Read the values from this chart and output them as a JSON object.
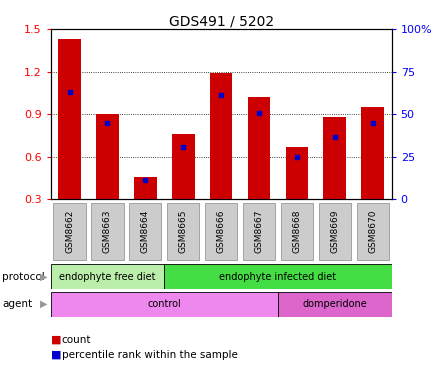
{
  "title": "GDS491 / 5202",
  "samples": [
    "GSM8662",
    "GSM8663",
    "GSM8664",
    "GSM8665",
    "GSM8666",
    "GSM8667",
    "GSM8668",
    "GSM8669",
    "GSM8670"
  ],
  "counts": [
    1.43,
    0.9,
    0.46,
    0.76,
    1.19,
    1.02,
    0.67,
    0.88,
    0.95
  ],
  "percentiles_left": [
    1.06,
    0.84,
    0.44,
    0.67,
    1.04,
    0.91,
    0.6,
    0.74,
    0.84
  ],
  "ylim_left": [
    0.3,
    1.5
  ],
  "yticks_left": [
    0.3,
    0.6,
    0.9,
    1.2,
    1.5
  ],
  "yticks_right": [
    0,
    25,
    50,
    75,
    100
  ],
  "bar_color": "#cc0000",
  "marker_color": "#0000cc",
  "protocol_groups": [
    {
      "label": "endophyte free diet",
      "start": 0,
      "end": 3,
      "color": "#bbeeaa"
    },
    {
      "label": "endophyte infected diet",
      "start": 3,
      "end": 9,
      "color": "#44dd44"
    }
  ],
  "agent_groups": [
    {
      "label": "control",
      "start": 0,
      "end": 6,
      "color": "#ee88ee"
    },
    {
      "label": "domperidone",
      "start": 6,
      "end": 9,
      "color": "#dd66cc"
    }
  ],
  "legend_count_label": "count",
  "legend_pct_label": "percentile rank within the sample",
  "tick_box_color": "#cccccc",
  "tick_box_edge": "#888888"
}
